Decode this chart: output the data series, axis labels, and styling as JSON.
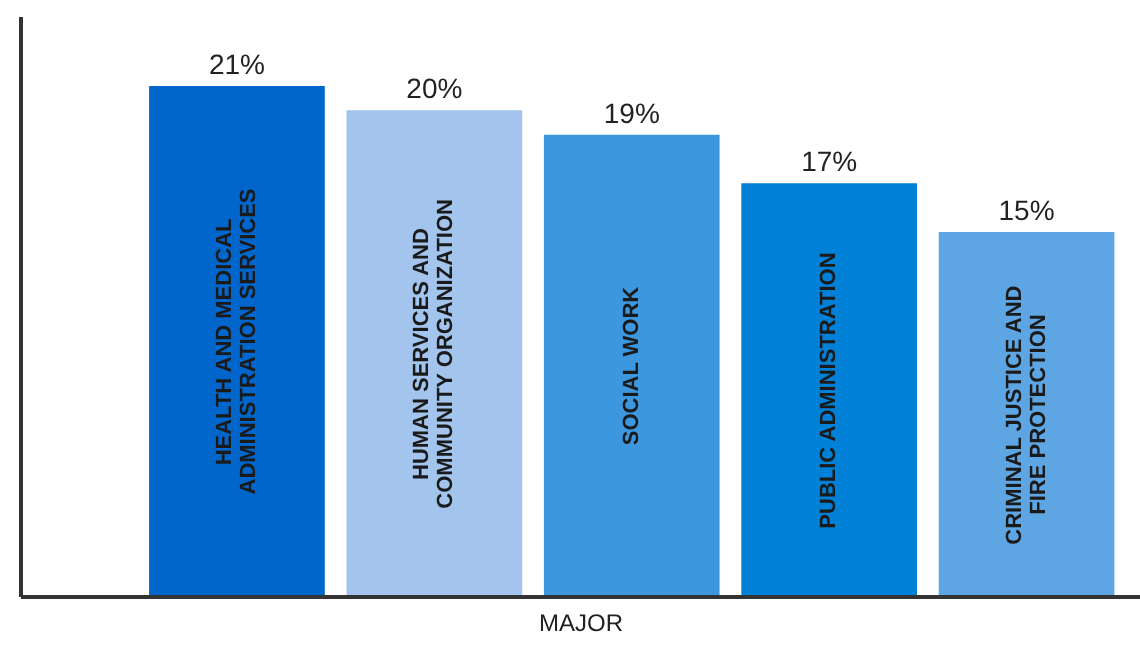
{
  "chart_data": {
    "type": "bar",
    "xlabel": "MAJOR",
    "categories": [
      "HEALTH AND MEDICAL\nADMINISTRATION SERVICES",
      "HUMAN SERVICES AND\nCOMMUNITY ORGANIZATION",
      "SOCIAL WORK",
      "PUBLIC ADMINISTRATION",
      "CRIMINAL JUSTICE AND\nFIRE PROTECTION"
    ],
    "values": [
      21,
      20,
      19,
      17,
      15
    ],
    "value_labels": [
      "21%",
      "20%",
      "19%",
      "17%",
      "15%"
    ],
    "colors": [
      "#0066cc",
      "#a3c4ec",
      "#3d97de",
      "#0080d6",
      "#5ea5e3"
    ]
  }
}
